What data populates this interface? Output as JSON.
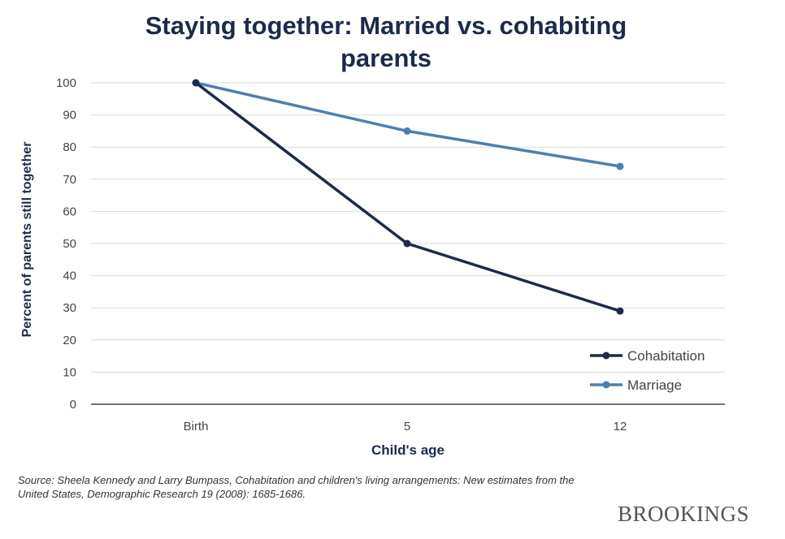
{
  "chart_data": {
    "type": "line",
    "title": "Staying together: Married vs. cohabiting parents",
    "xlabel": "Child's age",
    "ylabel": "Percent of parents still together",
    "categories": [
      "Birth",
      "5",
      "12"
    ],
    "ylim": [
      0,
      100
    ],
    "yticks": [
      0,
      10,
      20,
      30,
      40,
      50,
      60,
      70,
      80,
      90,
      100
    ],
    "grid": true,
    "legend_position": "bottom-right",
    "series": [
      {
        "name": "Cohabitation",
        "values": [
          100,
          50,
          29
        ],
        "color": "#1c2b4b"
      },
      {
        "name": "Marriage",
        "values": [
          100,
          85,
          74
        ],
        "color": "#4f7fb0"
      }
    ]
  },
  "source": "Source: Sheela Kennedy and Larry Bumpass, Cohabitation and children's living arrangements: New estimates from the United States, Demographic Research 19 (2008): 1685-1686.",
  "brand": "BROOKINGS"
}
